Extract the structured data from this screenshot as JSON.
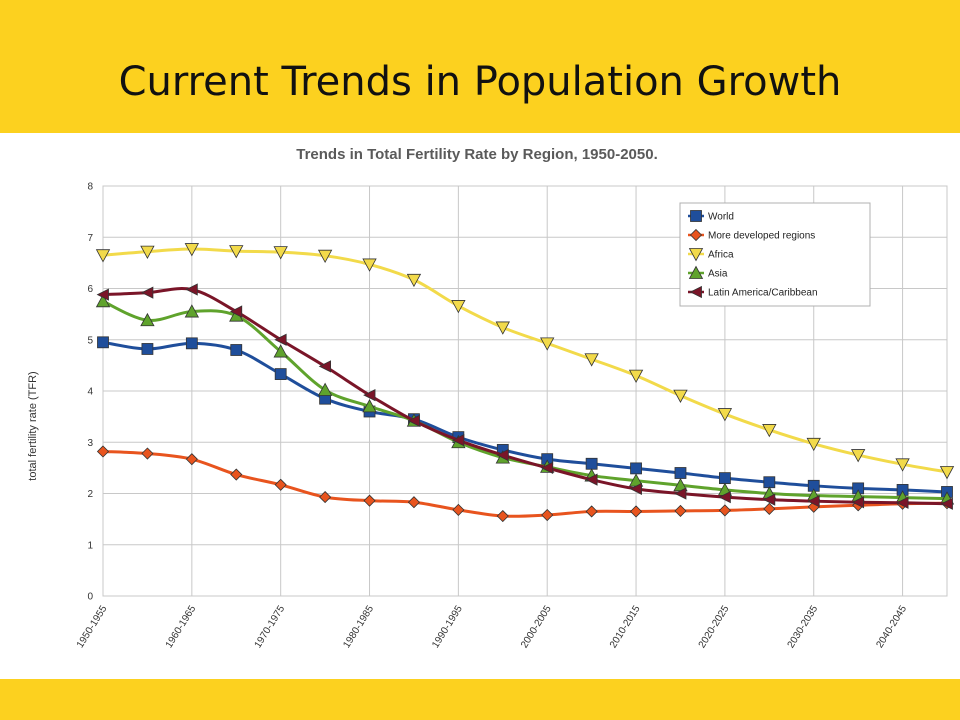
{
  "slide": {
    "title": "Current Trends in Population Growth",
    "band_color": "#FCD11F"
  },
  "chart_data": {
    "type": "line",
    "title": "Trends in Total Fertility Rate by Region, 1950-2050.",
    "xlabel": "",
    "ylabel": "total fertility rate (TFR)",
    "ylim": [
      0,
      8
    ],
    "yticks": [
      0,
      1,
      2,
      3,
      4,
      5,
      6,
      7,
      8
    ],
    "grid": true,
    "legend_position": "top-right",
    "categories": [
      "1950-1955",
      "1955-1960",
      "1960-1965",
      "1965-1970",
      "1970-1975",
      "1975-1980",
      "1980-1985",
      "1985-1990",
      "1990-1995",
      "1995-2000",
      "2000-2005",
      "2005-2010",
      "2010-2015",
      "2015-2020",
      "2020-2025",
      "2025-2030",
      "2030-2035",
      "2035-2040",
      "2040-2045",
      "2045-2050"
    ],
    "tick_labels": [
      "1950-1955",
      "1960-1965",
      "1970-1975",
      "1980-1985",
      "1990-1995",
      "2000-2005",
      "2010-2015",
      "2020-2025",
      "2030-2035",
      "2040-2045"
    ],
    "series": [
      {
        "name": "World",
        "color": "#1F4E9B",
        "marker": "square",
        "values": [
          4.95,
          4.82,
          4.93,
          4.8,
          4.33,
          3.85,
          3.6,
          3.45,
          3.1,
          2.85,
          2.67,
          2.58,
          2.49,
          2.4,
          2.3,
          2.22,
          2.15,
          2.1,
          2.07,
          2.03
        ]
      },
      {
        "name": "More developed regions",
        "color": "#E8541E",
        "marker": "diamond",
        "values": [
          2.82,
          2.78,
          2.67,
          2.37,
          2.17,
          1.93,
          1.86,
          1.83,
          1.68,
          1.56,
          1.58,
          1.65,
          1.65,
          1.66,
          1.67,
          1.7,
          1.74,
          1.77,
          1.8,
          1.81
        ]
      },
      {
        "name": "Africa",
        "color": "#F2DA4A",
        "marker": "triangle-down",
        "values": [
          6.65,
          6.72,
          6.77,
          6.73,
          6.71,
          6.64,
          6.47,
          6.17,
          5.66,
          5.24,
          4.93,
          4.62,
          4.3,
          3.91,
          3.55,
          3.24,
          2.97,
          2.75,
          2.57,
          2.42
        ]
      },
      {
        "name": "Asia",
        "color": "#5FA32C",
        "marker": "triangle-up",
        "values": [
          5.75,
          5.38,
          5.55,
          5.47,
          4.77,
          4.02,
          3.7,
          3.42,
          3.0,
          2.7,
          2.52,
          2.35,
          2.25,
          2.16,
          2.07,
          2.0,
          1.96,
          1.94,
          1.92,
          1.9
        ]
      },
      {
        "name": "Latin America/Caribbean",
        "color": "#7A1528",
        "marker": "triangle-left",
        "values": [
          5.88,
          5.92,
          5.98,
          5.55,
          5.0,
          4.48,
          3.92,
          3.42,
          3.04,
          2.75,
          2.5,
          2.27,
          2.09,
          2.0,
          1.93,
          1.88,
          1.85,
          1.83,
          1.82,
          1.8
        ]
      }
    ]
  }
}
